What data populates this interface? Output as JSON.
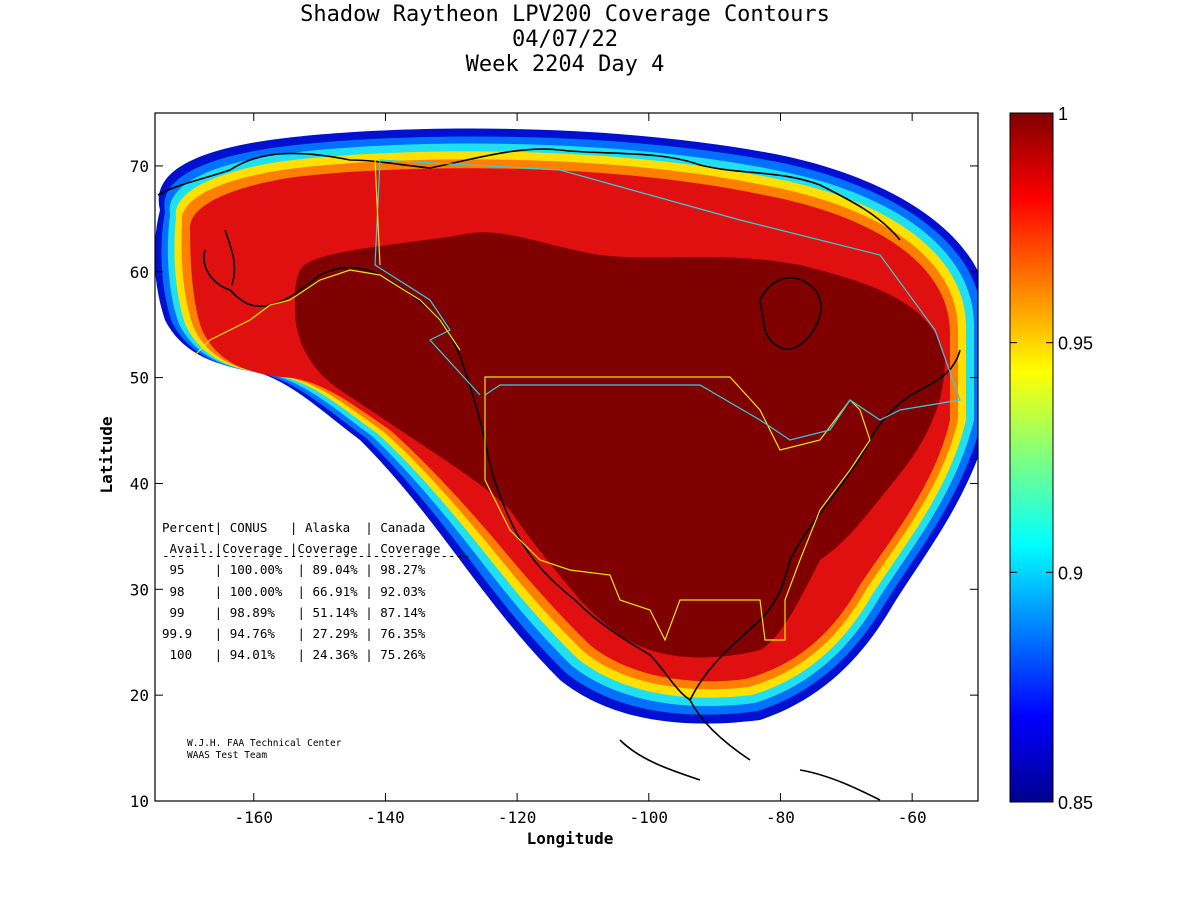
{
  "title": {
    "line1": "Shadow Raytheon LPV200 Coverage Contours",
    "line2": "04/07/22",
    "line3": "Week 2204 Day 4"
  },
  "axes": {
    "xlabel": "Longitude",
    "ylabel": "Latitude",
    "xticks": [
      "-160",
      "-140",
      "-120",
      "-100",
      "-80",
      "-60"
    ],
    "yticks": [
      "70",
      "60",
      "50",
      "40",
      "30",
      "20",
      "10"
    ],
    "xlim": [
      -175,
      -50
    ],
    "ylim": [
      10,
      75
    ]
  },
  "colorbar": {
    "ticks": [
      "1",
      "0.95",
      "0.9",
      "0.85"
    ],
    "range": [
      0.85,
      1.0
    ],
    "colormap": "jet"
  },
  "stats_table": {
    "header1": "Percent| CONUS   | Alaska  | Canada",
    "header2": " Avail.|Coverage |Coverage | Coverage",
    "divider": "-----------------------------------------",
    "rows": [
      " 95    | 100.00%  | 89.04% | 98.27%",
      " 98    | 100.00%  | 66.91% | 92.03%",
      " 99    | 98.89%   | 51.14% | 87.14%",
      "99.9   | 94.76%   | 27.29% | 76.35%",
      " 100   | 94.01%   | 24.36% | 75.26%"
    ]
  },
  "credit": {
    "line1": "W.J.H. FAA Technical Center",
    "line2": "WAAS Test Team"
  },
  "colors": {
    "max_coverage": "#800000",
    "background": "#ffffff",
    "boundary_lines": "#e6e60a",
    "canada_alaska_border": "#30d0e0"
  }
}
